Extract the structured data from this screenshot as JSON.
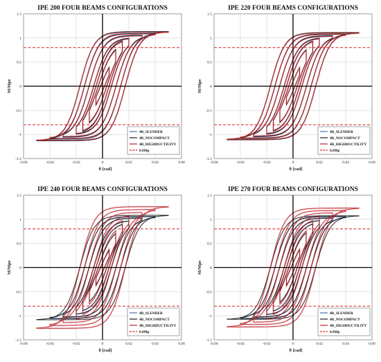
{
  "colors": {
    "slender": "#4a72b0",
    "nocompact": "#1a1a1a",
    "highductility": "#b22222",
    "mp_line": "#d62020",
    "loop_halo": "#f4b6c2",
    "grid": "#c8c8c8"
  },
  "legend_labels": [
    "4B_SLENDER",
    "4B_NOCOMPACT",
    "4B_HIGHDUCTILITY",
    "0.8Mp"
  ],
  "chart_data": [
    {
      "type": "line",
      "title": "IPE 200 FOUR BEAMS CONFIGURATIONS",
      "xlabel": "θ [rad]",
      "ylabel": "M/Mpe",
      "xlim": [
        -0.06,
        0.06
      ],
      "ylim": [
        -1.5,
        1.5
      ],
      "xticks": [
        "-0.06",
        "-0.04",
        "-0.02",
        "0",
        "0.02",
        "0.04",
        "0.06"
      ],
      "yticks": [
        "1.5",
        "1",
        "0.5",
        "0",
        "-0.5",
        "-1",
        "-1.5"
      ],
      "reference_lines": [
        {
          "name": "0.8Mp",
          "y": [
            0.8,
            -0.8
          ]
        }
      ],
      "legend_position": "bottom-right",
      "series": [
        {
          "name": "4B_SLENDER",
          "amplitudes": [
            0.005,
            0.01,
            0.015,
            0.02,
            0.03,
            0.04
          ],
          "peak_moment": [
            0.75,
            0.93,
            1.01,
            1.03,
            1.08,
            1.13
          ]
        },
        {
          "name": "4B_NOCOMPACT",
          "amplitudes": [
            0.005,
            0.01,
            0.015,
            0.02,
            0.03,
            0.04,
            0.05
          ],
          "peak_moment": [
            0.74,
            0.92,
            1.0,
            1.02,
            1.07,
            1.11,
            1.15
          ]
        },
        {
          "name": "4B_HIGHDUCTILITY",
          "amplitudes": [
            0.005,
            0.01,
            0.015,
            0.02,
            0.03,
            0.04,
            0.05
          ],
          "peak_moment": [
            0.72,
            0.9,
            0.98,
            1.01,
            1.06,
            1.1,
            1.14
          ]
        }
      ]
    },
    {
      "type": "line",
      "title": "IPE 220 FOUR BEAMS CONFIGURATIONS",
      "xlabel": "θ [rad]",
      "ylabel": "M/Mpe",
      "xlim": [
        -0.06,
        0.06
      ],
      "ylim": [
        -1.5,
        1.5
      ],
      "xticks": [
        "-0.06",
        "-0.04",
        "-0.02",
        "0",
        "0.02",
        "0.04",
        "0.06"
      ],
      "yticks": [
        "1.5",
        "1",
        "0.5",
        "0",
        "-0.5",
        "-1",
        "-1.5"
      ],
      "reference_lines": [
        {
          "name": "0.8Mp",
          "y": [
            0.8,
            -0.8
          ]
        }
      ],
      "legend_position": "bottom-right",
      "series": [
        {
          "name": "4B_SLENDER",
          "amplitudes": [
            0.005,
            0.01,
            0.015,
            0.02,
            0.03,
            0.04
          ],
          "peak_moment": [
            0.74,
            0.92,
            1.0,
            1.03,
            1.07,
            1.1
          ]
        },
        {
          "name": "4B_NOCOMPACT",
          "amplitudes": [
            0.005,
            0.01,
            0.015,
            0.02,
            0.03,
            0.04,
            0.05
          ],
          "peak_moment": [
            0.73,
            0.91,
            0.99,
            1.02,
            1.06,
            1.1,
            1.13
          ]
        },
        {
          "name": "4B_HIGHDUCTILITY",
          "amplitudes": [
            0.005,
            0.01,
            0.015,
            0.02,
            0.03,
            0.04,
            0.05
          ],
          "peak_moment": [
            0.72,
            0.9,
            0.98,
            1.01,
            1.05,
            1.09,
            1.12
          ]
        }
      ]
    },
    {
      "type": "line",
      "title": "IPE 240 FOUR BEAMS CONFIGURATIONS",
      "xlabel": "θ [rad]",
      "ylabel": "M/Mpe",
      "xlim": [
        -0.06,
        0.06
      ],
      "ylim": [
        -1.5,
        1.5
      ],
      "xticks": [
        "-0.06",
        "-0.04",
        "-0.02",
        "0",
        "0.02",
        "0.04",
        "0.06"
      ],
      "yticks": [
        "1.5",
        "1",
        "0.5",
        "0",
        "-0.5",
        "-1",
        "-1.5"
      ],
      "reference_lines": [
        {
          "name": "0.8Mp",
          "y": [
            0.8,
            -0.8
          ]
        }
      ],
      "legend_position": "bottom-right",
      "series": [
        {
          "name": "4B_SLENDER",
          "amplitudes": [
            0.005,
            0.01,
            0.015,
            0.02,
            0.03,
            0.04
          ],
          "peak_moment": [
            0.7,
            0.86,
            0.96,
            1.0,
            1.05,
            1.08
          ]
        },
        {
          "name": "4B_NOCOMPACT",
          "amplitudes": [
            0.005,
            0.01,
            0.015,
            0.02,
            0.03,
            0.04,
            0.05
          ],
          "peak_moment": [
            0.68,
            0.85,
            0.95,
            0.99,
            1.04,
            1.07,
            1.1
          ]
        },
        {
          "name": "4B_HIGHDUCTILITY",
          "amplitudes": [
            0.005,
            0.01,
            0.015,
            0.02,
            0.03,
            0.04,
            0.05
          ],
          "peak_moment": [
            0.72,
            0.92,
            1.04,
            1.1,
            1.16,
            1.22,
            1.28
          ]
        }
      ]
    },
    {
      "type": "line",
      "title": "IPE 270 FOUR BEAMS CONFIGURATIONS",
      "xlabel": "θ [rad]",
      "ylabel": "M/Mpe",
      "xlim": [
        -0.06,
        0.06
      ],
      "ylim": [
        -1.5,
        1.5
      ],
      "xticks": [
        "-0.06",
        "-0.04",
        "-0.02",
        "0",
        "0.02",
        "0.04",
        "0.06"
      ],
      "yticks": [
        "1.5",
        "1",
        "0.5",
        "0",
        "-0.5",
        "-1",
        "-1.5"
      ],
      "reference_lines": [
        {
          "name": "0.8Mp",
          "y": [
            0.8,
            -0.8
          ]
        }
      ],
      "legend_position": "bottom-right",
      "series": [
        {
          "name": "4B_SLENDER",
          "amplitudes": [
            0.005,
            0.01,
            0.015,
            0.02,
            0.03,
            0.04
          ],
          "peak_moment": [
            0.72,
            0.88,
            0.97,
            1.01,
            1.05,
            1.08
          ]
        },
        {
          "name": "4B_NOCOMPACT",
          "amplitudes": [
            0.005,
            0.01,
            0.015,
            0.02,
            0.03,
            0.04,
            0.05
          ],
          "peak_moment": [
            0.7,
            0.87,
            0.96,
            1.0,
            1.04,
            1.07,
            1.09
          ]
        },
        {
          "name": "4B_HIGHDUCTILITY",
          "amplitudes": [
            0.005,
            0.01,
            0.015,
            0.02,
            0.03,
            0.04,
            0.05
          ],
          "peak_moment": [
            0.73,
            0.92,
            1.04,
            1.1,
            1.15,
            1.2,
            1.25
          ]
        }
      ]
    }
  ]
}
